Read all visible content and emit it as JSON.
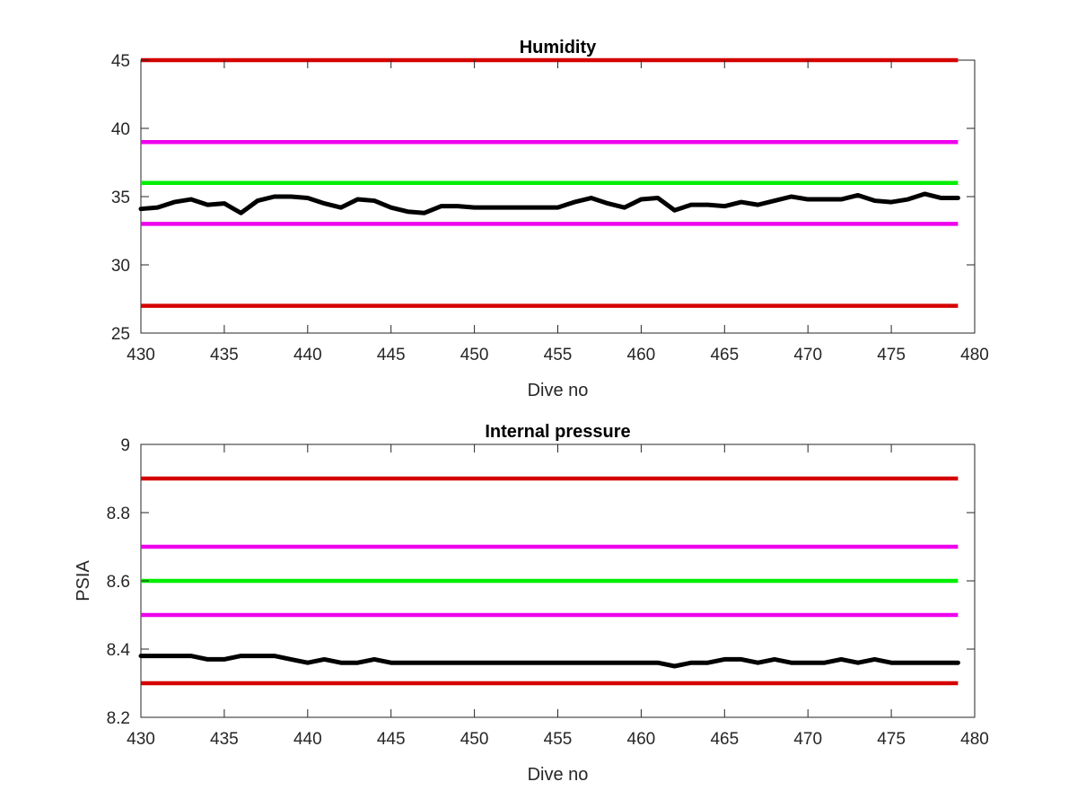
{
  "chart_data": [
    {
      "type": "line",
      "title": "Humidity",
      "xlabel": "Dive no",
      "ylabel": "",
      "xlim": [
        430,
        480
      ],
      "ylim": [
        25,
        45
      ],
      "xticks": [
        430,
        435,
        440,
        445,
        450,
        455,
        460,
        465,
        470,
        475,
        480
      ],
      "yticks": [
        25,
        30,
        35,
        40,
        45
      ],
      "grid": false,
      "legend": false,
      "thresholds": [
        {
          "value": 45,
          "x": [
            430,
            479
          ],
          "color": "#d40000"
        },
        {
          "value": 39,
          "x": [
            430,
            479
          ],
          "color": "#ee00ee"
        },
        {
          "value": 36,
          "x": [
            430,
            479
          ],
          "color": "#00ee00"
        },
        {
          "value": 33,
          "x": [
            430,
            479
          ],
          "color": "#ee00ee"
        },
        {
          "value": 27,
          "x": [
            430,
            479
          ],
          "color": "#d40000"
        }
      ],
      "series": [
        {
          "color": "#000000",
          "x": [
            430,
            431,
            432,
            433,
            434,
            435,
            436,
            437,
            438,
            439,
            440,
            441,
            442,
            443,
            444,
            445,
            446,
            447,
            448,
            449,
            450,
            451,
            452,
            453,
            454,
            455,
            456,
            457,
            458,
            459,
            460,
            461,
            462,
            463,
            464,
            465,
            466,
            467,
            468,
            469,
            470,
            471,
            472,
            473,
            474,
            475,
            476,
            477,
            478,
            479
          ],
          "values": [
            34.1,
            34.2,
            34.6,
            34.8,
            34.4,
            34.5,
            33.8,
            34.7,
            35.0,
            35.0,
            34.9,
            34.5,
            34.2,
            34.8,
            34.7,
            34.2,
            33.9,
            33.8,
            34.3,
            34.3,
            34.2,
            34.2,
            34.2,
            34.2,
            34.2,
            34.2,
            34.6,
            34.9,
            34.5,
            34.2,
            34.8,
            34.9,
            34.0,
            34.4,
            34.4,
            34.3,
            34.6,
            34.4,
            34.7,
            35.0,
            34.8,
            34.8,
            34.8,
            35.1,
            34.7,
            34.6,
            34.8,
            35.2,
            34.9,
            34.9
          ]
        }
      ]
    },
    {
      "type": "line",
      "title": "Internal pressure",
      "xlabel": "Dive no",
      "ylabel": "PSIA",
      "xlim": [
        430,
        480
      ],
      "ylim": [
        8.2,
        9.0
      ],
      "xticks": [
        430,
        435,
        440,
        445,
        450,
        455,
        460,
        465,
        470,
        475,
        480
      ],
      "yticks": [
        8.2,
        8.4,
        8.6,
        8.8,
        9.0
      ],
      "ytick_labels": [
        "8.2",
        "8.4",
        "8.6",
        "8.8",
        "9"
      ],
      "grid": false,
      "legend": false,
      "thresholds": [
        {
          "value": 8.9,
          "x": [
            430,
            479
          ],
          "color": "#d40000"
        },
        {
          "value": 8.7,
          "x": [
            430,
            479
          ],
          "color": "#ee00ee"
        },
        {
          "value": 8.6,
          "x": [
            430,
            479
          ],
          "color": "#00ee00"
        },
        {
          "value": 8.5,
          "x": [
            430,
            479
          ],
          "color": "#ee00ee"
        },
        {
          "value": 8.3,
          "x": [
            430,
            479
          ],
          "color": "#d40000"
        }
      ],
      "series": [
        {
          "color": "#000000",
          "x": [
            430,
            431,
            432,
            433,
            434,
            435,
            436,
            437,
            438,
            439,
            440,
            441,
            442,
            443,
            444,
            445,
            446,
            447,
            448,
            449,
            450,
            451,
            452,
            453,
            454,
            455,
            456,
            457,
            458,
            459,
            460,
            461,
            462,
            463,
            464,
            465,
            466,
            467,
            468,
            469,
            470,
            471,
            472,
            473,
            474,
            475,
            476,
            477,
            478,
            479
          ],
          "values": [
            8.38,
            8.38,
            8.38,
            8.38,
            8.37,
            8.37,
            8.38,
            8.38,
            8.38,
            8.37,
            8.36,
            8.37,
            8.36,
            8.36,
            8.37,
            8.36,
            8.36,
            8.36,
            8.36,
            8.36,
            8.36,
            8.36,
            8.36,
            8.36,
            8.36,
            8.36,
            8.36,
            8.36,
            8.36,
            8.36,
            8.36,
            8.36,
            8.35,
            8.36,
            8.36,
            8.37,
            8.37,
            8.36,
            8.37,
            8.36,
            8.36,
            8.36,
            8.37,
            8.36,
            8.37,
            8.36,
            8.36,
            8.36,
            8.36,
            8.36
          ]
        }
      ]
    }
  ]
}
